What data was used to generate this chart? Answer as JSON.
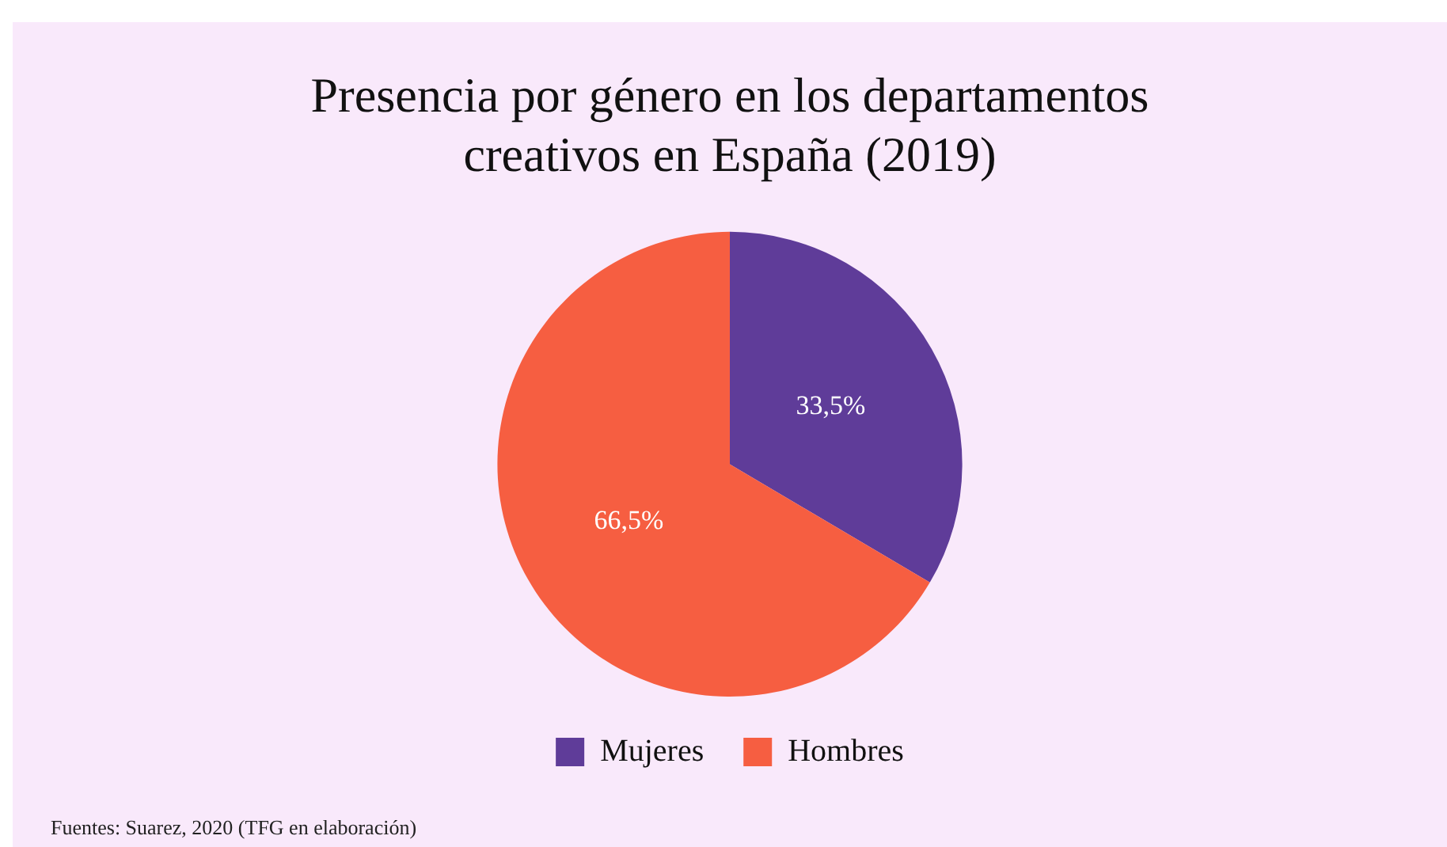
{
  "chart_data": {
    "type": "pie",
    "title": "Presencia por género en los departamentos\ncreativos en España (2019)",
    "categories": [
      "Mujeres",
      "Hombres"
    ],
    "values": [
      33.5,
      66.5
    ],
    "colors": [
      "#5f3c99",
      "#f65e41"
    ],
    "value_labels": [
      "33,5%",
      "66,5%"
    ],
    "legend": "bottom",
    "annotations": [
      "Fuentes: Suarez, 2020 (TFG en elaboración)"
    ]
  }
}
